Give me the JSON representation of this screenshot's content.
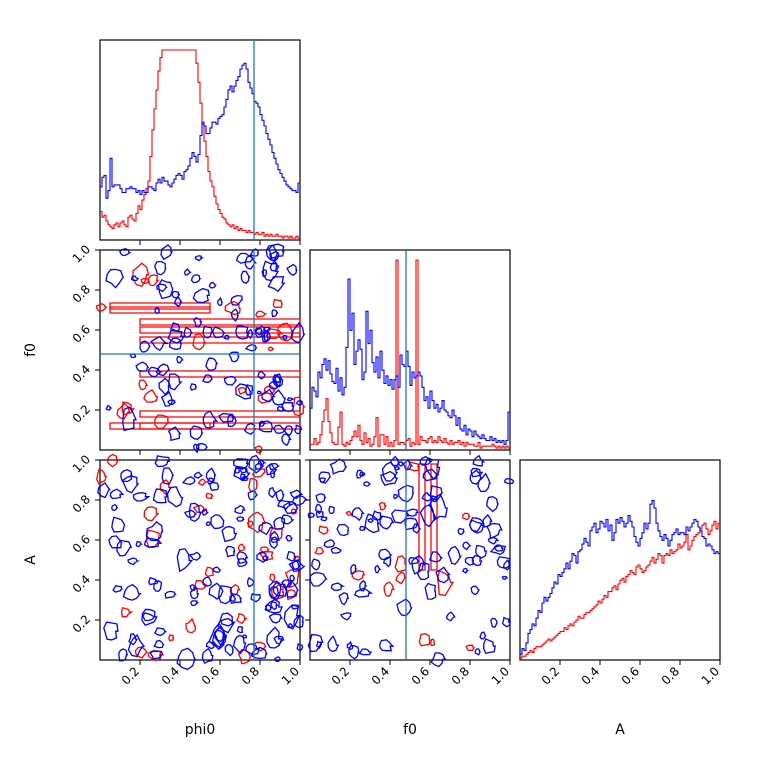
{
  "chart_data": {
    "type": "corner",
    "parameters": [
      "phi0",
      "f0",
      "A"
    ],
    "axis_range": [
      0,
      1
    ],
    "tick_labels": [
      "0.2",
      "0.4",
      "0.6",
      "0.8",
      "1.0"
    ],
    "truth_values": {
      "phi0": 0.77,
      "f0": 0.48
    },
    "colors": {
      "blue": "#0000ff",
      "red": "#ff0000",
      "truth": "#1f77b4"
    },
    "histograms": {
      "phi0": {
        "bin_width": 0.02,
        "blue": [
          0.28,
          0.33,
          0.34,
          0.22,
          0.26,
          0.43,
          0.28,
          0.29,
          0.29,
          0.29,
          0.27,
          0.25,
          0.25,
          0.27,
          0.27,
          0.28,
          0.27,
          0.27,
          0.25,
          0.26,
          0.24,
          0.26,
          0.25,
          0.25,
          0.28,
          0.28,
          0.27,
          0.26,
          0.3,
          0.32,
          0.3,
          0.33,
          0.31,
          0.31,
          0.29,
          0.28,
          0.3,
          0.32,
          0.34,
          0.35,
          0.34,
          0.32,
          0.36,
          0.37,
          0.39,
          0.43,
          0.46,
          0.44,
          0.41,
          0.45,
          0.55,
          0.62,
          0.6,
          0.56,
          0.56,
          0.59,
          0.62,
          0.62,
          0.61,
          0.64,
          0.65,
          0.66,
          0.7,
          0.74,
          0.79,
          0.81,
          0.78,
          0.81,
          0.84,
          0.86,
          0.9,
          0.92,
          0.93,
          0.9,
          0.83,
          0.8,
          0.77,
          0.73,
          0.72,
          0.7,
          0.66,
          0.63,
          0.6,
          0.56,
          0.53,
          0.5,
          0.46,
          0.43,
          0.4,
          0.37,
          0.35,
          0.33,
          0.31,
          0.29,
          0.28,
          0.27,
          0.26,
          0.26,
          0.25,
          0.3
        ],
        "red": [
          0.15,
          0.12,
          0.13,
          0.1,
          0.08,
          0.07,
          0.06,
          0.08,
          0.09,
          0.07,
          0.09,
          0.1,
          0.08,
          0.07,
          0.12,
          0.13,
          0.11,
          0.1,
          0.14,
          0.18,
          0.16,
          0.21,
          0.24,
          0.27,
          0.31,
          0.44,
          0.58,
          0.69,
          0.79,
          0.89,
          0.96,
          1.0,
          1.0,
          1.0,
          1.0,
          1.0,
          1.0,
          1.0,
          1.0,
          1.0,
          1.0,
          1.0,
          1.0,
          1.0,
          1.0,
          1.0,
          1.0,
          1.0,
          0.93,
          0.83,
          0.72,
          0.61,
          0.52,
          0.44,
          0.36,
          0.31,
          0.28,
          0.23,
          0.19,
          0.16,
          0.14,
          0.12,
          0.11,
          0.09,
          0.08,
          0.07,
          0.08,
          0.06,
          0.07,
          0.05,
          0.06,
          0.05,
          0.05,
          0.04,
          0.05,
          0.04,
          0.04,
          0.03,
          0.04,
          0.03,
          0.03,
          0.04,
          0.02,
          0.03,
          0.02,
          0.03,
          0.02,
          0.02,
          0.03,
          0.02,
          0.02,
          0.01,
          0.02,
          0.02,
          0.01,
          0.02,
          0.01,
          0.01,
          0.02,
          0.01
        ]
      },
      "f0": {
        "bin_width": 0.02,
        "blue": [
          0.22,
          0.33,
          0.31,
          0.28,
          0.41,
          0.38,
          0.45,
          0.48,
          0.42,
          0.47,
          0.4,
          0.36,
          0.35,
          0.43,
          0.31,
          0.38,
          0.29,
          0.33,
          0.54,
          0.9,
          0.63,
          0.72,
          0.45,
          0.52,
          0.58,
          0.53,
          0.37,
          0.41,
          0.73,
          0.56,
          0.63,
          0.46,
          0.41,
          0.49,
          0.38,
          0.52,
          0.42,
          0.35,
          0.39,
          0.34,
          0.37,
          0.32,
          0.37,
          0.39,
          0.33,
          0.5,
          0.45,
          0.44,
          0.52,
          0.44,
          0.34,
          0.41,
          0.38,
          0.39,
          0.41,
          0.39,
          0.33,
          0.26,
          0.28,
          0.22,
          0.31,
          0.26,
          0.22,
          0.24,
          0.2,
          0.22,
          0.26,
          0.21,
          0.2,
          0.18,
          0.17,
          0.21,
          0.18,
          0.13,
          0.17,
          0.11,
          0.1,
          0.13,
          0.08,
          0.11,
          0.1,
          0.07,
          0.1,
          0.08,
          0.07,
          0.06,
          0.08,
          0.06,
          0.05,
          0.05,
          0.07,
          0.05,
          0.06,
          0.04,
          0.05,
          0.04,
          0.05,
          0.03,
          0.05,
          0.2
        ],
        "red": [
          0.03,
          0.03,
          0.06,
          0.03,
          0.04,
          0.08,
          0.15,
          0.21,
          0.27,
          0.15,
          0.09,
          0.04,
          0.03,
          0.03,
          0.12,
          0.2,
          0.03,
          0.02,
          0.04,
          0.03,
          0.05,
          0.07,
          0.1,
          0.07,
          0.13,
          0.05,
          0.03,
          0.09,
          0.04,
          0.06,
          0.02,
          0.03,
          0.07,
          0.17,
          0.02,
          0.08,
          0.08,
          0.03,
          0.07,
          0.02,
          0.04,
          0.02,
          0.05,
          1.0,
          0.03,
          0.04,
          0.04,
          0.03,
          0.05,
          0.06,
          0.02,
          0.04,
          0.03,
          1.0,
          0.03,
          0.07,
          0.05,
          0.05,
          0.04,
          0.06,
          0.07,
          0.04,
          0.05,
          0.04,
          0.07,
          0.05,
          0.04,
          0.06,
          0.04,
          0.03,
          0.05,
          0.03,
          0.04,
          0.04,
          0.05,
          0.03,
          0.04,
          0.02,
          0.04,
          0.03,
          0.03,
          0.03,
          0.02,
          0.02,
          0.04,
          0.01,
          0.02,
          0.02,
          0.02,
          0.02,
          0.02,
          0.03,
          0.02,
          0.01,
          0.02,
          0.01,
          0.02,
          0.01,
          0.02,
          0.01
        ]
      },
      "A": {
        "bin_width": 0.02,
        "blue": [
          0.03,
          0.06,
          0.05,
          0.09,
          0.14,
          0.16,
          0.19,
          0.18,
          0.22,
          0.26,
          0.25,
          0.3,
          0.33,
          0.31,
          0.33,
          0.35,
          0.38,
          0.41,
          0.4,
          0.45,
          0.44,
          0.46,
          0.48,
          0.51,
          0.48,
          0.52,
          0.56,
          0.55,
          0.51,
          0.57,
          0.58,
          0.61,
          0.64,
          0.62,
          0.6,
          0.68,
          0.7,
          0.72,
          0.67,
          0.69,
          0.73,
          0.72,
          0.7,
          0.74,
          0.68,
          0.71,
          0.63,
          0.67,
          0.74,
          0.72,
          0.75,
          0.73,
          0.7,
          0.72,
          0.76,
          0.73,
          0.7,
          0.65,
          0.62,
          0.6,
          0.64,
          0.67,
          0.72,
          0.69,
          0.72,
          0.82,
          0.84,
          0.8,
          0.72,
          0.68,
          0.65,
          0.63,
          0.66,
          0.64,
          0.6,
          0.63,
          0.66,
          0.67,
          0.69,
          0.66,
          0.67,
          0.67,
          0.66,
          0.7,
          0.68,
          0.7,
          0.72,
          0.74,
          0.73,
          0.7,
          0.68,
          0.65,
          0.64,
          0.6,
          0.61,
          0.6,
          0.58,
          0.56,
          0.57,
          0.56
        ],
        "red": [
          0.01,
          0.02,
          0.02,
          0.03,
          0.04,
          0.05,
          0.04,
          0.06,
          0.07,
          0.07,
          0.07,
          0.08,
          0.09,
          0.1,
          0.11,
          0.1,
          0.11,
          0.12,
          0.13,
          0.14,
          0.15,
          0.15,
          0.17,
          0.16,
          0.18,
          0.19,
          0.18,
          0.2,
          0.21,
          0.23,
          0.22,
          0.22,
          0.24,
          0.25,
          0.25,
          0.26,
          0.27,
          0.28,
          0.29,
          0.31,
          0.3,
          0.32,
          0.34,
          0.33,
          0.36,
          0.36,
          0.38,
          0.39,
          0.37,
          0.4,
          0.42,
          0.43,
          0.41,
          0.44,
          0.45,
          0.47,
          0.46,
          0.45,
          0.49,
          0.5,
          0.48,
          0.46,
          0.47,
          0.49,
          0.5,
          0.52,
          0.54,
          0.51,
          0.53,
          0.56,
          0.55,
          0.51,
          0.55,
          0.56,
          0.55,
          0.58,
          0.56,
          0.57,
          0.58,
          0.61,
          0.59,
          0.6,
          0.62,
          0.66,
          0.58,
          0.6,
          0.63,
          0.65,
          0.66,
          0.67,
          0.69,
          0.71,
          0.72,
          0.69,
          0.66,
          0.68,
          0.71,
          0.73,
          0.69,
          0.72
        ]
      }
    }
  }
}
